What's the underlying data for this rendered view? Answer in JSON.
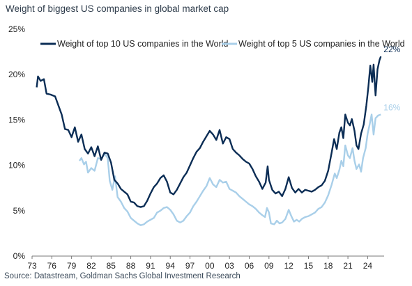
{
  "title": "Weight of biggest US companies in global market cap",
  "source": "Source: Datastream, Goldman Sachs Global Investment Research",
  "chart_data": {
    "type": "line",
    "title": "Weight of biggest US companies in global market cap",
    "xlabel": "",
    "ylabel": "",
    "x_tick_labels": [
      "73",
      "76",
      "79",
      "82",
      "85",
      "88",
      "91",
      "94",
      "97",
      "00",
      "03",
      "06",
      "09",
      "12",
      "15",
      "18",
      "21",
      "24"
    ],
    "y_tick_labels": [
      "0%",
      "5%",
      "10%",
      "15%",
      "20%",
      "25%"
    ],
    "xlim": [
      1973,
      2026.5
    ],
    "ylim": [
      0,
      25
    ],
    "legend_position": "top",
    "grid": false,
    "series": [
      {
        "name": "Weight of top 10 US companies in the World",
        "color": "#0b2d55",
        "end_label": "22%",
        "points": [
          [
            1973.7,
            18.6
          ],
          [
            1973.9,
            19.8
          ],
          [
            1974.3,
            19.3
          ],
          [
            1974.8,
            19.5
          ],
          [
            1975.2,
            17.9
          ],
          [
            1975.8,
            17.8
          ],
          [
            1976.5,
            17.6
          ],
          [
            1977.0,
            16.6
          ],
          [
            1977.5,
            15.6
          ],
          [
            1978.0,
            14.0
          ],
          [
            1978.5,
            13.9
          ],
          [
            1979.0,
            13.1
          ],
          [
            1979.5,
            14.2
          ],
          [
            1980.0,
            12.6
          ],
          [
            1980.5,
            13.4
          ],
          [
            1981.0,
            11.8
          ],
          [
            1981.5,
            11.3
          ],
          [
            1982.0,
            12.0
          ],
          [
            1982.5,
            11.0
          ],
          [
            1983.0,
            12.1
          ],
          [
            1983.5,
            10.6
          ],
          [
            1984.0,
            11.4
          ],
          [
            1984.5,
            11.3
          ],
          [
            1985.0,
            10.3
          ],
          [
            1985.5,
            8.4
          ],
          [
            1986.0,
            8.0
          ],
          [
            1986.5,
            7.4
          ],
          [
            1987.0,
            7.1
          ],
          [
            1987.5,
            6.8
          ],
          [
            1988.0,
            6.0
          ],
          [
            1988.5,
            5.9
          ],
          [
            1989.0,
            5.5
          ],
          [
            1989.5,
            5.4
          ],
          [
            1990.0,
            5.5
          ],
          [
            1990.5,
            6.1
          ],
          [
            1991.0,
            6.9
          ],
          [
            1991.5,
            7.6
          ],
          [
            1992.0,
            8.0
          ],
          [
            1992.5,
            8.6
          ],
          [
            1993.0,
            8.9
          ],
          [
            1993.5,
            8.2
          ],
          [
            1994.0,
            7.0
          ],
          [
            1994.5,
            6.8
          ],
          [
            1995.0,
            7.3
          ],
          [
            1995.5,
            8.0
          ],
          [
            1996.0,
            8.7
          ],
          [
            1996.5,
            9.2
          ],
          [
            1997.0,
            10.0
          ],
          [
            1997.5,
            10.8
          ],
          [
            1998.0,
            11.5
          ],
          [
            1998.5,
            11.9
          ],
          [
            1999.0,
            12.6
          ],
          [
            1999.5,
            13.2
          ],
          [
            2000.0,
            13.8
          ],
          [
            2000.5,
            13.4
          ],
          [
            2001.0,
            12.8
          ],
          [
            2001.5,
            13.9
          ],
          [
            2002.0,
            12.4
          ],
          [
            2002.5,
            13.1
          ],
          [
            2003.0,
            12.9
          ],
          [
            2003.5,
            11.8
          ],
          [
            2004.0,
            11.4
          ],
          [
            2004.5,
            11.1
          ],
          [
            2005.0,
            10.7
          ],
          [
            2005.5,
            10.4
          ],
          [
            2006.0,
            10.2
          ],
          [
            2006.5,
            9.6
          ],
          [
            2007.0,
            8.8
          ],
          [
            2007.5,
            8.2
          ],
          [
            2008.0,
            7.4
          ],
          [
            2008.5,
            8.1
          ],
          [
            2008.8,
            9.9
          ],
          [
            2009.0,
            8.4
          ],
          [
            2009.5,
            7.3
          ],
          [
            2010.0,
            6.9
          ],
          [
            2010.5,
            7.1
          ],
          [
            2011.0,
            6.6
          ],
          [
            2011.5,
            7.4
          ],
          [
            2012.0,
            8.7
          ],
          [
            2012.5,
            7.5
          ],
          [
            2013.0,
            7.0
          ],
          [
            2013.5,
            7.4
          ],
          [
            2014.0,
            7.0
          ],
          [
            2014.5,
            7.3
          ],
          [
            2015.0,
            7.2
          ],
          [
            2015.5,
            7.1
          ],
          [
            2016.0,
            7.3
          ],
          [
            2016.5,
            7.6
          ],
          [
            2017.0,
            7.8
          ],
          [
            2017.5,
            8.3
          ],
          [
            2018.0,
            9.4
          ],
          [
            2018.5,
            11.3
          ],
          [
            2018.9,
            12.9
          ],
          [
            2019.3,
            11.8
          ],
          [
            2019.7,
            13.6
          ],
          [
            2020.0,
            14.2
          ],
          [
            2020.3,
            13.0
          ],
          [
            2020.6,
            15.6
          ],
          [
            2021.0,
            14.7
          ],
          [
            2021.3,
            14.4
          ],
          [
            2021.6,
            15.1
          ],
          [
            2022.0,
            13.8
          ],
          [
            2022.3,
            12.2
          ],
          [
            2022.6,
            11.8
          ],
          [
            2023.0,
            13.5
          ],
          [
            2023.4,
            14.5
          ],
          [
            2023.8,
            16.6
          ],
          [
            2024.1,
            18.6
          ],
          [
            2024.4,
            21.0
          ],
          [
            2024.7,
            19.2
          ],
          [
            2024.9,
            21.1
          ],
          [
            2025.2,
            17.7
          ],
          [
            2025.5,
            20.6
          ],
          [
            2025.8,
            21.6
          ],
          [
            2026.0,
            22.0
          ]
        ]
      },
      {
        "name": "Weight of top 5 US companies in the World",
        "color": "#a9cfe9",
        "end_label": "16%",
        "points": [
          [
            1980.2,
            10.5
          ],
          [
            1980.5,
            10.8
          ],
          [
            1980.9,
            10.1
          ],
          [
            1981.2,
            10.4
          ],
          [
            1981.5,
            9.2
          ],
          [
            1982.0,
            9.7
          ],
          [
            1982.5,
            9.4
          ],
          [
            1983.0,
            10.8
          ],
          [
            1983.5,
            10.7
          ],
          [
            1984.0,
            11.3
          ],
          [
            1984.5,
            10.8
          ],
          [
            1984.8,
            8.3
          ],
          [
            1985.2,
            7.3
          ],
          [
            1985.6,
            8.8
          ],
          [
            1986.0,
            6.5
          ],
          [
            1986.5,
            6.0
          ],
          [
            1987.0,
            5.3
          ],
          [
            1987.5,
            4.9
          ],
          [
            1988.0,
            4.2
          ],
          [
            1988.5,
            3.9
          ],
          [
            1989.0,
            3.6
          ],
          [
            1989.5,
            3.4
          ],
          [
            1990.0,
            3.5
          ],
          [
            1990.5,
            3.8
          ],
          [
            1991.0,
            4.0
          ],
          [
            1991.5,
            4.2
          ],
          [
            1992.0,
            4.8
          ],
          [
            1992.5,
            5.0
          ],
          [
            1993.0,
            5.3
          ],
          [
            1993.5,
            5.4
          ],
          [
            1994.0,
            5.1
          ],
          [
            1994.5,
            4.6
          ],
          [
            1995.0,
            3.9
          ],
          [
            1995.5,
            3.7
          ],
          [
            1996.0,
            3.9
          ],
          [
            1996.5,
            4.4
          ],
          [
            1997.0,
            4.8
          ],
          [
            1997.5,
            5.5
          ],
          [
            1998.0,
            6.0
          ],
          [
            1998.5,
            6.6
          ],
          [
            1999.0,
            7.2
          ],
          [
            1999.5,
            7.7
          ],
          [
            2000.0,
            8.6
          ],
          [
            2000.5,
            7.9
          ],
          [
            2001.0,
            7.6
          ],
          [
            2001.5,
            8.4
          ],
          [
            2002.0,
            8.1
          ],
          [
            2002.5,
            8.2
          ],
          [
            2003.0,
            7.4
          ],
          [
            2003.5,
            7.2
          ],
          [
            2004.0,
            7.0
          ],
          [
            2004.5,
            6.6
          ],
          [
            2005.0,
            6.3
          ],
          [
            2005.5,
            6.0
          ],
          [
            2006.0,
            5.7
          ],
          [
            2006.5,
            5.5
          ],
          [
            2007.0,
            5.2
          ],
          [
            2007.5,
            4.8
          ],
          [
            2008.0,
            4.5
          ],
          [
            2008.4,
            4.3
          ],
          [
            2008.7,
            5.3
          ],
          [
            2009.0,
            4.8
          ],
          [
            2009.3,
            3.6
          ],
          [
            2009.8,
            3.5
          ],
          [
            2010.2,
            3.9
          ],
          [
            2010.6,
            3.6
          ],
          [
            2011.0,
            3.7
          ],
          [
            2011.5,
            4.1
          ],
          [
            2012.0,
            5.1
          ],
          [
            2012.4,
            4.4
          ],
          [
            2012.8,
            3.8
          ],
          [
            2013.2,
            4.0
          ],
          [
            2013.6,
            3.8
          ],
          [
            2014.0,
            4.1
          ],
          [
            2014.5,
            4.3
          ],
          [
            2015.0,
            4.4
          ],
          [
            2015.5,
            4.6
          ],
          [
            2016.0,
            4.8
          ],
          [
            2016.5,
            5.2
          ],
          [
            2017.0,
            5.4
          ],
          [
            2017.5,
            5.9
          ],
          [
            2018.0,
            6.7
          ],
          [
            2018.5,
            7.8
          ],
          [
            2019.0,
            9.1
          ],
          [
            2019.3,
            8.6
          ],
          [
            2019.7,
            9.5
          ],
          [
            2020.0,
            10.5
          ],
          [
            2020.3,
            9.9
          ],
          [
            2020.6,
            12.2
          ],
          [
            2021.0,
            11.1
          ],
          [
            2021.3,
            10.8
          ],
          [
            2021.7,
            11.9
          ],
          [
            2022.0,
            10.5
          ],
          [
            2022.3,
            9.6
          ],
          [
            2022.7,
            10.1
          ],
          [
            2023.0,
            9.3
          ],
          [
            2023.3,
            10.8
          ],
          [
            2023.7,
            11.9
          ],
          [
            2024.0,
            13.5
          ],
          [
            2024.3,
            14.5
          ],
          [
            2024.6,
            15.6
          ],
          [
            2024.9,
            13.4
          ],
          [
            2025.2,
            15.2
          ],
          [
            2025.6,
            15.5
          ],
          [
            2026.0,
            15.6
          ]
        ]
      }
    ]
  }
}
